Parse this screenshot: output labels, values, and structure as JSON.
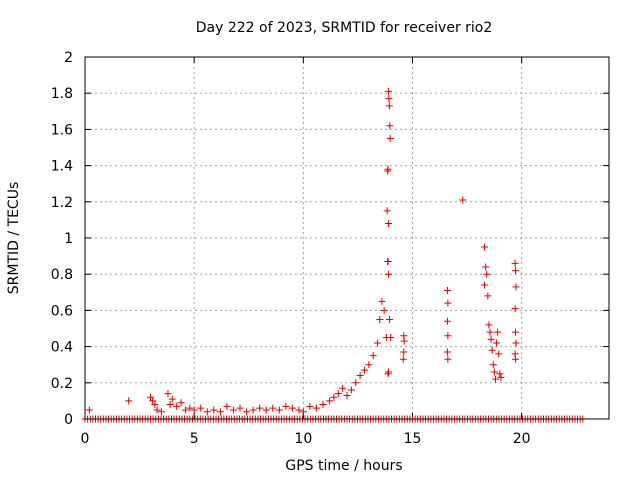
{
  "chart_data": {
    "type": "scatter",
    "title": "Day 222 of 2023, SRMTID for receiver rio2",
    "xlabel": "GPS time / hours",
    "ylabel": "SRMTID / TECUs",
    "xlim": [
      0,
      24
    ],
    "ylim": [
      0,
      2
    ],
    "x_ticks": [
      0,
      5,
      10,
      15,
      20
    ],
    "x_tick_labels": [
      "0",
      "5",
      "10",
      "15",
      "20"
    ],
    "y_ticks": [
      0,
      0.2,
      0.4,
      0.6,
      0.8,
      1,
      1.2,
      1.4,
      1.6,
      1.8,
      2
    ],
    "y_tick_labels": [
      "0",
      "0.2",
      "0.4",
      "0.6",
      "0.8",
      "1",
      "1.2",
      "1.4",
      "1.6",
      "1.8",
      "2"
    ],
    "grid": true,
    "marker": "+",
    "color": "#e00000",
    "series": [
      {
        "name": "SRMTID",
        "points": [
          [
            0.2,
            0.05
          ],
          [
            2.0,
            0.1
          ],
          [
            3.0,
            0.12
          ],
          [
            3.1,
            0.1
          ],
          [
            3.2,
            0.08
          ],
          [
            3.3,
            0.05
          ],
          [
            3.5,
            0.04
          ],
          [
            3.8,
            0.14
          ],
          [
            3.9,
            0.08
          ],
          [
            4.0,
            0.11
          ],
          [
            4.2,
            0.07
          ],
          [
            4.4,
            0.09
          ],
          [
            4.6,
            0.05
          ],
          [
            4.8,
            0.06
          ],
          [
            5.0,
            0.05
          ],
          [
            5.3,
            0.06
          ],
          [
            5.6,
            0.04
          ],
          [
            5.9,
            0.05
          ],
          [
            6.2,
            0.04
          ],
          [
            6.5,
            0.07
          ],
          [
            6.8,
            0.05
          ],
          [
            7.1,
            0.06
          ],
          [
            7.4,
            0.04
          ],
          [
            7.7,
            0.05
          ],
          [
            8.0,
            0.06
          ],
          [
            8.3,
            0.05
          ],
          [
            8.6,
            0.06
          ],
          [
            8.9,
            0.05
          ],
          [
            9.2,
            0.07
          ],
          [
            9.5,
            0.06
          ],
          [
            9.8,
            0.05
          ],
          [
            10.0,
            0.04
          ],
          [
            10.3,
            0.07
          ],
          [
            10.6,
            0.06
          ],
          [
            10.9,
            0.08
          ],
          [
            11.2,
            0.1
          ],
          [
            11.4,
            0.12
          ],
          [
            11.6,
            0.14
          ],
          [
            11.8,
            0.17
          ],
          [
            12.0,
            0.13
          ],
          [
            12.2,
            0.16
          ],
          [
            12.4,
            0.2
          ],
          [
            12.6,
            0.24
          ],
          [
            12.8,
            0.27
          ],
          [
            13.0,
            0.3
          ],
          [
            13.2,
            0.35
          ],
          [
            13.4,
            0.42
          ],
          [
            13.5,
            0.55
          ],
          [
            13.6,
            0.65
          ],
          [
            13.7,
            0.6
          ],
          [
            13.8,
            0.45
          ],
          [
            13.9,
            1.81
          ],
          [
            13.92,
            1.77
          ],
          [
            13.94,
            1.73
          ],
          [
            13.96,
            1.62
          ],
          [
            13.98,
            1.55
          ],
          [
            13.86,
            1.37
          ],
          [
            13.88,
            1.38
          ],
          [
            13.84,
            1.15
          ],
          [
            13.9,
            1.08
          ],
          [
            13.86,
            0.87
          ],
          [
            13.88,
            0.87
          ],
          [
            13.9,
            0.8
          ],
          [
            13.95,
            0.55
          ],
          [
            14.0,
            0.45
          ],
          [
            13.9,
            0.26
          ],
          [
            13.88,
            0.25
          ],
          [
            14.6,
            0.46
          ],
          [
            14.62,
            0.43
          ],
          [
            14.6,
            0.37
          ],
          [
            14.58,
            0.33
          ],
          [
            16.6,
            0.71
          ],
          [
            16.62,
            0.64
          ],
          [
            16.6,
            0.54
          ],
          [
            16.62,
            0.46
          ],
          [
            16.6,
            0.37
          ],
          [
            16.62,
            0.33
          ],
          [
            17.3,
            1.21
          ],
          [
            18.3,
            0.95
          ],
          [
            18.35,
            0.84
          ],
          [
            18.4,
            0.8
          ],
          [
            18.3,
            0.74
          ],
          [
            18.45,
            0.68
          ],
          [
            18.5,
            0.52
          ],
          [
            18.55,
            0.48
          ],
          [
            18.6,
            0.44
          ],
          [
            18.65,
            0.38
          ],
          [
            18.7,
            0.3
          ],
          [
            18.75,
            0.26
          ],
          [
            18.8,
            0.22
          ],
          [
            18.85,
            0.42
          ],
          [
            18.9,
            0.48
          ],
          [
            18.95,
            0.36
          ],
          [
            19.0,
            0.25
          ],
          [
            19.05,
            0.23
          ],
          [
            19.7,
            0.86
          ],
          [
            19.72,
            0.82
          ],
          [
            19.74,
            0.73
          ],
          [
            19.7,
            0.61
          ],
          [
            19.72,
            0.48
          ],
          [
            19.74,
            0.42
          ],
          [
            19.7,
            0.36
          ],
          [
            19.72,
            0.33
          ]
        ]
      },
      {
        "name": "zero-baseline",
        "x_range": [
          0,
          22.8
        ],
        "step": 0.12,
        "value": 0.0
      }
    ]
  }
}
